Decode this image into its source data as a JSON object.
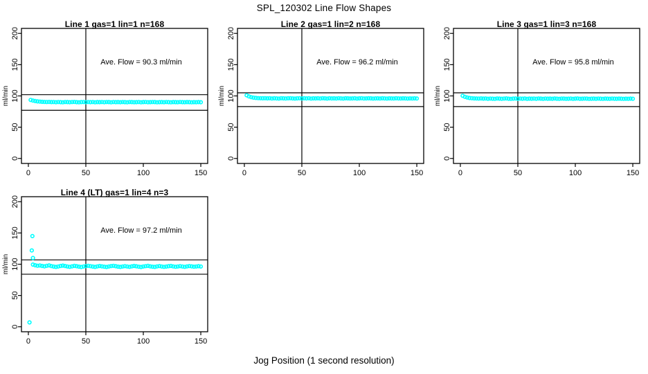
{
  "figure": {
    "title": "SPL_120302  Line Flow Shapes",
    "xlabel": "Jog Position (1 second resolution)",
    "background": "#ffffff",
    "axis_color": "#000000",
    "point_color": "#00FFFF"
  },
  "chart_data": [
    {
      "type": "scatter",
      "title": "Line 1 gas=1 lin=1 n=168",
      "annotation": "Ave. Flow =  90.3  ml/min",
      "ave_flow": 90.3,
      "n": 168,
      "ylabel": "ml/min",
      "xlim": [
        -6,
        156
      ],
      "ylim": [
        -8,
        208
      ],
      "xticks": [
        0,
        50,
        100,
        150
      ],
      "yticks": [
        0,
        50,
        100,
        150,
        200
      ],
      "vline": 50,
      "hlines": [
        102,
        77
      ],
      "point_color": "#00FFFF",
      "points": {
        "from": 2,
        "step": 2,
        "v": [
          93.6,
          92.6,
          91.8,
          91.3,
          90.9,
          90.6,
          90.4,
          90.2,
          90.4,
          90.1,
          90.3,
          89.9,
          90.2,
          90.0,
          89.8,
          90.3,
          90.1,
          89.9,
          90.2,
          90.4,
          90.0,
          89.8,
          90.1,
          90.3,
          89.9,
          90.2,
          90.0,
          90.3,
          89.8,
          90.1,
          90.0,
          90.2,
          89.9,
          90.3,
          90.1,
          89.8,
          90.2,
          90.0,
          90.1,
          89.9,
          90.3,
          90.0,
          89.8,
          90.2,
          90.1,
          89.9,
          90.0,
          90.2,
          89.8,
          90.1,
          90.3,
          89.9,
          90.0,
          90.2,
          90.1,
          89.8,
          90.0,
          90.1,
          89.9,
          90.2,
          90.0,
          89.8,
          90.1,
          90.0,
          89.9,
          90.2,
          90.0,
          89.9,
          90.1,
          90.0,
          89.8,
          90.0,
          89.9,
          90.1,
          89.9
        ]
      },
      "extra_points": []
    },
    {
      "type": "scatter",
      "title": "Line 2 gas=1 lin=2 n=168",
      "annotation": "Ave. Flow =  96.2  ml/min",
      "ave_flow": 96.2,
      "n": 168,
      "ylabel": "ml/min",
      "xlim": [
        -6,
        156
      ],
      "ylim": [
        -8,
        208
      ],
      "xticks": [
        0,
        50,
        100,
        150
      ],
      "yticks": [
        0,
        50,
        100,
        150,
        200
      ],
      "vline": 50,
      "hlines": [
        105,
        83
      ],
      "point_color": "#00FFFF",
      "points": {
        "from": 2,
        "step": 2,
        "v": [
          101.0,
          99.2,
          98.0,
          97.2,
          96.8,
          96.5,
          96.3,
          96.2,
          96.4,
          96.1,
          96.3,
          95.9,
          96.2,
          96.0,
          95.8,
          96.3,
          96.1,
          95.9,
          96.2,
          96.4,
          96.0,
          95.8,
          96.1,
          96.3,
          95.9,
          96.2,
          96.0,
          96.3,
          95.8,
          96.1,
          96.0,
          96.2,
          95.9,
          96.3,
          96.1,
          95.8,
          96.2,
          96.0,
          96.1,
          95.9,
          96.3,
          96.0,
          95.8,
          96.2,
          96.1,
          95.9,
          96.0,
          96.2,
          95.8,
          96.1,
          96.3,
          95.9,
          96.0,
          96.2,
          96.1,
          95.8,
          96.0,
          96.1,
          95.9,
          96.2,
          96.0,
          95.8,
          96.1,
          96.0,
          95.9,
          96.2,
          96.0,
          95.9,
          96.1,
          96.0,
          95.8,
          96.0,
          95.9,
          96.1,
          95.9
        ]
      },
      "extra_points": []
    },
    {
      "type": "scatter",
      "title": "Line 3 gas=1 lin=3 n=168",
      "annotation": "Ave. Flow =  95.8  ml/min",
      "ave_flow": 95.8,
      "n": 168,
      "ylabel": "ml/min",
      "xlim": [
        -6,
        156
      ],
      "ylim": [
        -8,
        208
      ],
      "xticks": [
        0,
        50,
        100,
        150
      ],
      "yticks": [
        0,
        50,
        100,
        150,
        200
      ],
      "vline": 50,
      "hlines": [
        105,
        83
      ],
      "point_color": "#00FFFF",
      "points": {
        "from": 2,
        "step": 2,
        "v": [
          100.2,
          98.6,
          97.4,
          96.7,
          96.3,
          96.0,
          95.9,
          95.8,
          96.0,
          95.7,
          95.9,
          95.5,
          95.8,
          95.6,
          95.4,
          95.9,
          95.7,
          95.5,
          95.8,
          96.0,
          95.6,
          95.4,
          95.7,
          95.9,
          95.5,
          95.8,
          95.6,
          95.9,
          95.4,
          95.7,
          95.6,
          95.8,
          95.5,
          95.9,
          95.7,
          95.4,
          95.8,
          95.6,
          95.7,
          95.5,
          95.9,
          95.6,
          95.4,
          95.8,
          95.7,
          95.5,
          95.6,
          95.8,
          95.4,
          95.7,
          95.9,
          95.5,
          95.6,
          95.8,
          95.7,
          95.4,
          95.6,
          95.7,
          95.5,
          95.8,
          95.6,
          95.4,
          95.7,
          95.6,
          95.5,
          95.8,
          95.6,
          95.5,
          95.7,
          95.6,
          95.4,
          95.6,
          95.5,
          95.7,
          95.5
        ]
      },
      "extra_points": []
    },
    {
      "type": "scatter",
      "title": "Line 4 (LT) gas=1 lin=4 n=3",
      "annotation": "Ave. Flow =  97.2  ml/min",
      "ave_flow": 97.2,
      "n": 3,
      "ylabel": "ml/min",
      "xlim": [
        -6,
        156
      ],
      "ylim": [
        -8,
        208
      ],
      "xticks": [
        0,
        50,
        100,
        150
      ],
      "yticks": [
        0,
        50,
        100,
        150,
        200
      ],
      "vline": 50,
      "hlines": [
        107,
        84
      ],
      "point_color": "#00FFFF",
      "points": {
        "from": 4,
        "step": 2,
        "v": [
          99.4,
          98.3,
          97.6,
          98.0,
          97.2,
          96.6,
          97.4,
          98.1,
          97.0,
          96.2,
          95.7,
          96.4,
          97.2,
          97.8,
          97.1,
          96.3,
          95.8,
          96.6,
          97.3,
          96.8,
          96.1,
          95.6,
          96.4,
          97.0,
          97.5,
          96.9,
          96.2,
          95.7,
          96.5,
          97.1,
          96.6,
          96.0,
          95.6,
          96.3,
          97.0,
          97.4,
          96.8,
          96.1,
          95.7,
          96.4,
          96.9,
          96.3,
          95.8,
          96.6,
          97.2,
          96.7,
          96.0,
          95.6,
          96.3,
          96.9,
          97.3,
          96.6,
          96.0,
          95.7,
          96.5,
          97.0,
          96.4,
          95.8,
          96.2,
          96.8,
          97.2,
          96.5,
          95.9,
          96.3,
          96.9,
          96.4,
          95.8,
          96.5,
          97.0,
          96.6,
          96.0,
          96.4,
          96.8,
          96.3
        ]
      },
      "extra_points": [
        [
          1,
          7
        ],
        [
          3,
          122
        ],
        [
          3.5,
          145
        ],
        [
          4,
          110
        ]
      ]
    }
  ]
}
